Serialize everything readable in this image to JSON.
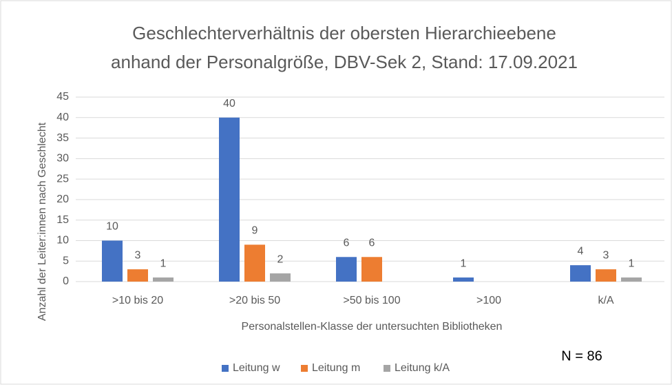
{
  "chart_data": {
    "type": "bar",
    "title": [
      "Geschlechterverhältnis der obersten Hierarchieebene",
      "anhand der Personalgröße, DBV-Sek 2, Stand: 17.09.2021"
    ],
    "x_label": "Personalstellen-Klasse der untersuchten Bibliotheken",
    "y_label": "Anzahl der Leiter:innen  nach Geschlecht",
    "annotation": "N = 86",
    "categories": [
      ">10 bis 20",
      ">20 bis 50",
      ">50 bis 100",
      ">100",
      "k/A"
    ],
    "series": [
      {
        "name": "Leitung w",
        "color": "#4472c4",
        "values": [
          10,
          40,
          6,
          1,
          4
        ]
      },
      {
        "name": "Leitung m",
        "color": "#ed7d31",
        "values": [
          3,
          9,
          6,
          null,
          3
        ]
      },
      {
        "name": "Leitung k/A",
        "color": "#a5a5a5",
        "values": [
          1,
          2,
          null,
          null,
          1
        ]
      }
    ],
    "ylim": [
      0,
      45
    ],
    "yticks": [
      0,
      5,
      10,
      15,
      20,
      25,
      30,
      35,
      40,
      45
    ],
    "grid": true,
    "legend": "bottom"
  }
}
